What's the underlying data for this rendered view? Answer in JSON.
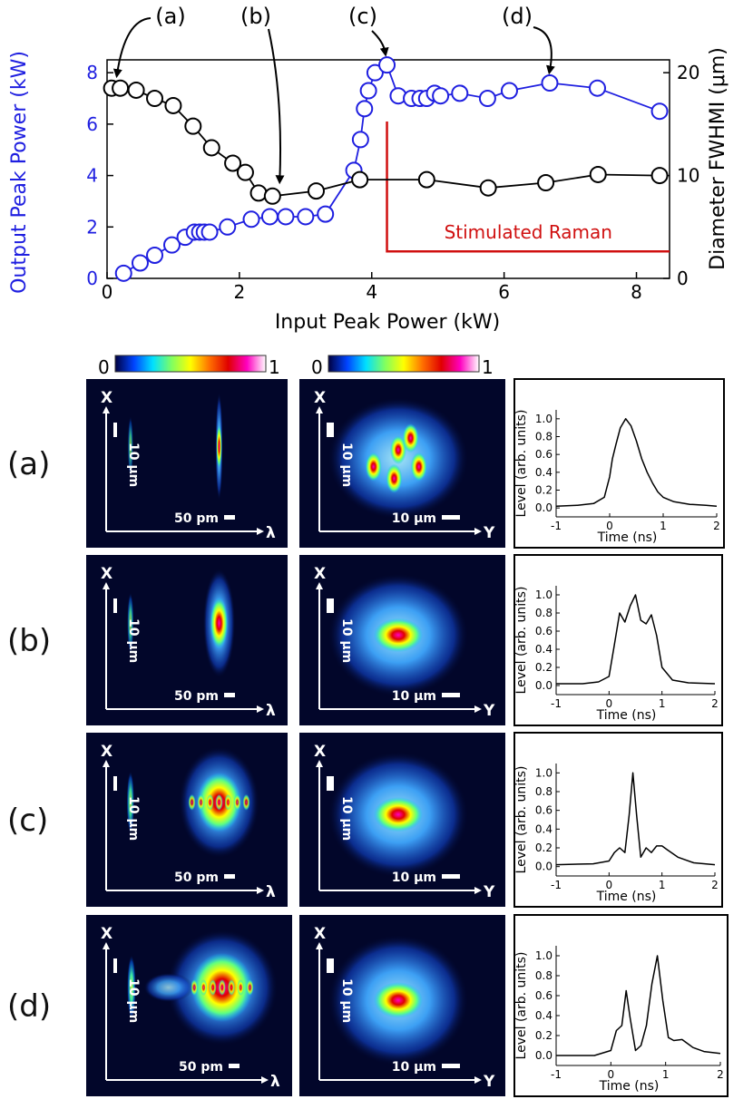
{
  "chart_data": [
    {
      "type": "scatter",
      "title": "",
      "xlabel": "Input Peak Power (kW)",
      "ylabel": "Output Peak Power (kW)",
      "y2label": "Diameter FWHMI (μm)",
      "xlim": [
        0,
        8.5
      ],
      "ylim": [
        0,
        8.5
      ],
      "y2lim": [
        0,
        21.25
      ],
      "x_ticks": [
        "0",
        "2",
        "4",
        "6",
        "8"
      ],
      "y_ticks": [
        "0",
        "2",
        "4",
        "6",
        "8"
      ],
      "y2_ticks": [
        "0",
        "10",
        "20"
      ],
      "grid": false,
      "colors": {
        "output": "#1f1fe0",
        "diameter": "#000000",
        "raman": "#d01010"
      },
      "series": [
        {
          "axis": "left",
          "color": "#1f1fe0",
          "x": [
            0.25,
            0.5,
            0.72,
            0.98,
            1.18,
            1.32,
            1.4,
            1.47,
            1.55,
            1.82,
            2.18,
            2.46,
            2.7,
            3.0,
            3.3,
            3.73,
            3.83,
            3.89,
            3.95,
            4.05,
            4.23,
            4.4,
            4.6,
            4.73,
            4.83,
            4.95,
            5.04,
            5.33,
            5.75,
            6.08,
            6.69,
            7.41,
            8.35
          ],
          "y": [
            0.2,
            0.6,
            0.9,
            1.3,
            1.6,
            1.8,
            1.8,
            1.8,
            1.8,
            2.0,
            2.3,
            2.4,
            2.4,
            2.4,
            2.5,
            4.2,
            5.4,
            6.6,
            7.3,
            8.0,
            8.3,
            7.1,
            7.0,
            7.0,
            7.0,
            7.2,
            7.1,
            7.2,
            7.0,
            7.3,
            7.6,
            7.4,
            6.5
          ]
        },
        {
          "axis": "right",
          "color": "#000000",
          "x": [
            0.07,
            0.2,
            0.44,
            0.72,
            1.0,
            1.3,
            1.58,
            1.9,
            2.09,
            2.29,
            2.5,
            3.16,
            3.82,
            4.83,
            5.76,
            6.63,
            7.42,
            8.35
          ],
          "y": [
            18.5,
            18.5,
            18.3,
            17.5,
            16.8,
            14.8,
            12.7,
            11.2,
            10.3,
            8.3,
            8.0,
            8.5,
            9.6,
            9.6,
            8.8,
            9.3,
            10.1,
            10.0
          ]
        }
      ],
      "annotations": [
        {
          "label": "(a)",
          "x": 0.07,
          "y2": 18.5
        },
        {
          "label": "(b)",
          "x": 2.5,
          "y2": 8.0
        },
        {
          "label": "(c)",
          "x": 4.23,
          "y": 8.3
        },
        {
          "label": "(d)",
          "x": 6.69,
          "y": 7.6
        }
      ],
      "region": {
        "label": "Stimulated Raman",
        "x_start": 4.23,
        "x_end": 8.5,
        "y_top": 6.1,
        "y_bottom": 1.05
      }
    },
    {
      "type": "line",
      "title": "",
      "xlabel": "Time (ns)",
      "ylabel": "Level (arb. units)",
      "xlim": [
        -1,
        2
      ],
      "ylim": [
        -0.1,
        1.1
      ],
      "x_ticks": [
        "-1",
        "0",
        "1",
        "2"
      ],
      "y_ticks": [
        "0.0",
        "0.2",
        "0.4",
        "0.6",
        "0.8",
        "1.0"
      ],
      "panels": [
        {
          "label": "(a)",
          "x": [
            -1,
            -0.6,
            -0.3,
            -0.1,
            0.0,
            0.05,
            0.12,
            0.2,
            0.3,
            0.4,
            0.5,
            0.6,
            0.7,
            0.8,
            0.9,
            1.0,
            1.2,
            1.5,
            1.8,
            2.0
          ],
          "y": [
            0.02,
            0.03,
            0.05,
            0.12,
            0.35,
            0.55,
            0.72,
            0.9,
            1.0,
            0.92,
            0.75,
            0.55,
            0.4,
            0.28,
            0.18,
            0.12,
            0.07,
            0.04,
            0.03,
            0.02
          ]
        },
        {
          "label": "(b)",
          "x": [
            -1,
            -0.5,
            -0.2,
            0.0,
            0.1,
            0.2,
            0.3,
            0.4,
            0.5,
            0.6,
            0.7,
            0.8,
            0.9,
            1.0,
            1.2,
            1.5,
            2.0
          ],
          "y": [
            0.02,
            0.02,
            0.04,
            0.1,
            0.45,
            0.8,
            0.7,
            0.88,
            1.0,
            0.72,
            0.68,
            0.78,
            0.55,
            0.2,
            0.06,
            0.03,
            0.02
          ]
        },
        {
          "label": "(c)",
          "x": [
            -1,
            -0.3,
            0.0,
            0.1,
            0.2,
            0.3,
            0.38,
            0.45,
            0.52,
            0.6,
            0.7,
            0.8,
            0.9,
            1.0,
            1.1,
            1.3,
            1.6,
            2.0
          ],
          "y": [
            0.02,
            0.03,
            0.06,
            0.15,
            0.2,
            0.15,
            0.55,
            1.0,
            0.55,
            0.1,
            0.2,
            0.15,
            0.22,
            0.22,
            0.18,
            0.1,
            0.04,
            0.02
          ]
        },
        {
          "label": "(d)",
          "x": [
            -1,
            -0.3,
            0.0,
            0.1,
            0.2,
            0.28,
            0.35,
            0.45,
            0.55,
            0.65,
            0.75,
            0.85,
            0.95,
            1.05,
            1.15,
            1.3,
            1.5,
            1.7,
            2.0
          ],
          "y": [
            0.0,
            0.0,
            0.05,
            0.25,
            0.3,
            0.65,
            0.38,
            0.05,
            0.1,
            0.3,
            0.72,
            1.0,
            0.55,
            0.18,
            0.15,
            0.16,
            0.08,
            0.04,
            0.02
          ]
        }
      ]
    }
  ],
  "row_labels": [
    "(a)",
    "(b)",
    "(c)",
    "(d)"
  ],
  "colorbar": {
    "min_label": "0",
    "max_label": "1",
    "colors": [
      "#000040",
      "#0044ff",
      "#00e0ff",
      "#80ff60",
      "#ffff00",
      "#ff7000",
      "#e00000",
      "#ff00c0",
      "#ffffff"
    ]
  },
  "spectral_images": {
    "axis_x": "X",
    "axis_lambda": "λ",
    "scale_vertical": "10 μm",
    "scale_horizontal": "50 pm"
  },
  "spatial_images": {
    "axis_x": "X",
    "axis_y": "Y",
    "scale_vertical": "10 μm",
    "scale_horizontal": "10 μm"
  }
}
